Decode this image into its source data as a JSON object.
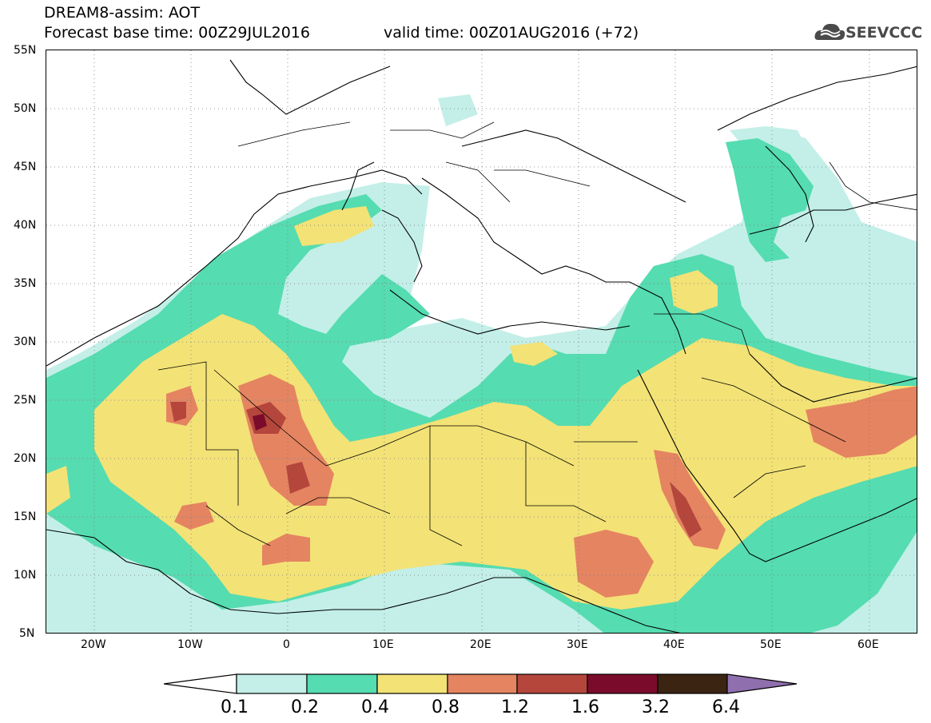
{
  "header": {
    "title_line1": "DREAM8-assim: AOT",
    "title_line2": "Forecast base time: 00Z29JUL2016",
    "valid_time": "valid time: 00Z01AUG2016 (+72)"
  },
  "logo": {
    "text": "SEEVCCC",
    "icon": "cloud-icon",
    "color": "#4a4a4a"
  },
  "map": {
    "region": "North Africa, Mediterranean, Middle East",
    "field": "Aerosol Optical Thickness",
    "lat_range": [
      5,
      55
    ],
    "lon_range": [
      -25,
      65
    ],
    "lat_labels": [
      "55N",
      "50N",
      "45N",
      "40N",
      "35N",
      "30N",
      "25N",
      "20N",
      "15N",
      "10N",
      "5N"
    ],
    "lon_labels": [
      "20W",
      "10W",
      "0",
      "10E",
      "20E",
      "30E",
      "40E",
      "50E",
      "60E"
    ],
    "gridlines": "dotted",
    "background_color": "#ffffff",
    "boundary_color": "#000000"
  },
  "colorbar": {
    "labels": [
      "0.1",
      "0.2",
      "0.4",
      "0.8",
      "1.2",
      "1.6",
      "3.2",
      "6.4"
    ],
    "colors": [
      "#ffffff",
      "#c3efe8",
      "#55dcb0",
      "#f3e276",
      "#e58461",
      "#b4463c",
      "#7b0b2a",
      "#3b2412",
      "#8f6fae"
    ],
    "extend": "both"
  },
  "palette": {
    "c1": "#c3efe8",
    "c2": "#55dcb0",
    "c3": "#f3e276",
    "c4": "#e58461",
    "c5": "#b4463c",
    "c6": "#7b0b2a"
  }
}
